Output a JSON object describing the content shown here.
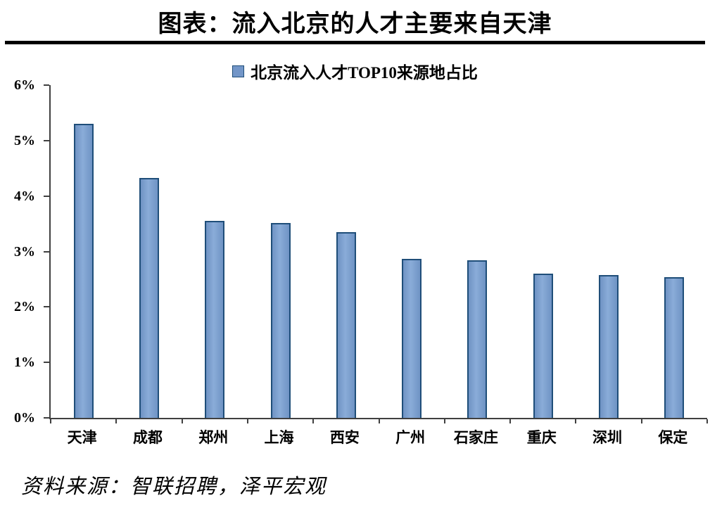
{
  "header": {
    "title": "图表：流入北京的人才主要来自天津"
  },
  "chart_data": {
    "type": "bar",
    "title": "北京流入人才TOP10来源地占比",
    "legend": [
      "北京流入人才TOP10来源地占比"
    ],
    "legend_position": "top",
    "categories": [
      "天津",
      "成都",
      "郑州",
      "上海",
      "西安",
      "广州",
      "石家庄",
      "重庆",
      "深圳",
      "保定"
    ],
    "values": [
      5.3,
      4.33,
      3.55,
      3.51,
      3.35,
      2.87,
      2.84,
      2.6,
      2.58,
      2.54
    ],
    "unit": "%",
    "xlabel": "",
    "ylabel": "",
    "ylim": [
      0,
      6
    ],
    "ytick_step": 1,
    "ytick_labels": [
      "0%",
      "1%",
      "2%",
      "3%",
      "4%",
      "5%",
      "6%"
    ],
    "grid": false,
    "bar_fill": "#7396C8",
    "bar_border": "#1F4E79"
  },
  "footer": {
    "source": "资料来源：智联招聘，泽平宏观"
  }
}
